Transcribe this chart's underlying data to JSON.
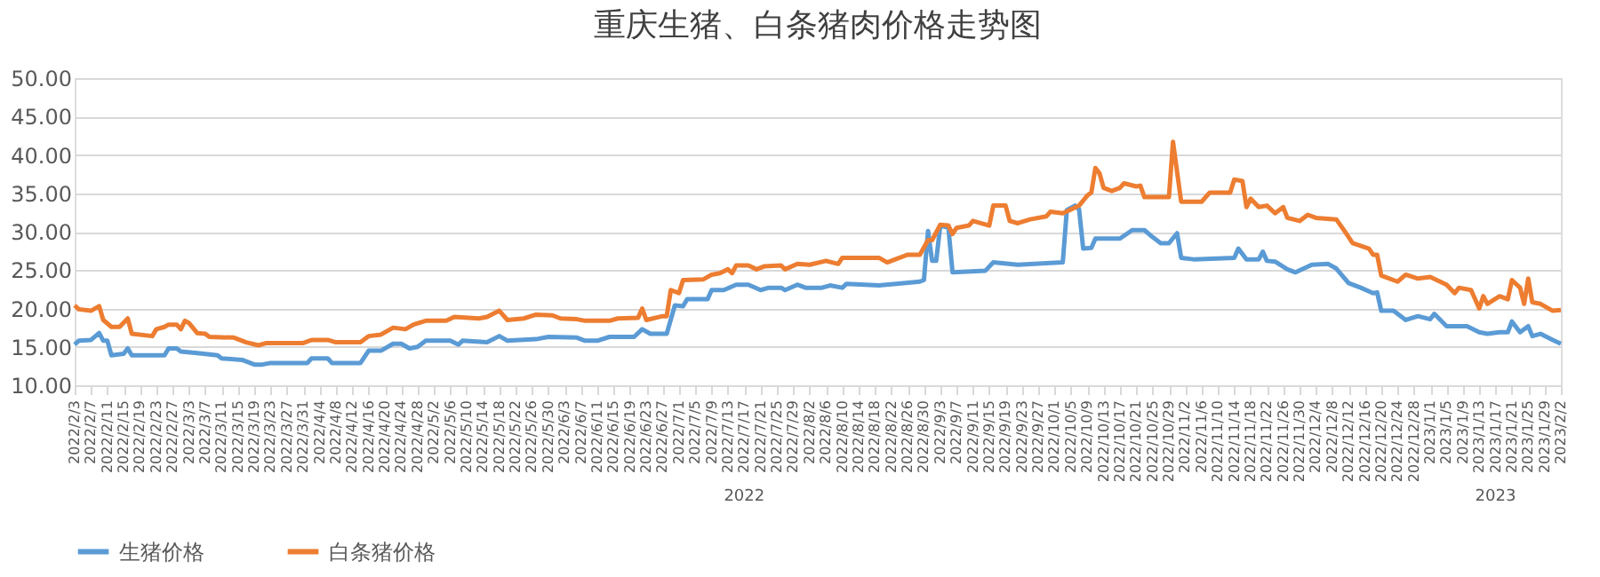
{
  "chart_data": {
    "type": "line",
    "title": "重庆生猪、白条猪肉价格走势图",
    "xlim": [
      "2022-02-03",
      "2023-02-02"
    ],
    "xticks": [
      {
        "value": "2022-02-03",
        "label": "2022/2/3"
      },
      {
        "value": "2022-02-07",
        "label": "2022/2/7"
      },
      {
        "value": "2022-02-11",
        "label": "2022/2/11"
      },
      {
        "value": "2022-02-15",
        "label": "2022/2/15"
      },
      {
        "value": "2022-02-19",
        "label": "2022/2/19"
      },
      {
        "value": "2022-02-23",
        "label": "2022/2/23"
      },
      {
        "value": "2022-02-27",
        "label": "2022/2/27"
      },
      {
        "value": "2022-03-03",
        "label": "2022/3/3"
      },
      {
        "value": "2022-03-07",
        "label": "2022/3/7"
      },
      {
        "value": "2022-03-11",
        "label": "2022/3/11"
      },
      {
        "value": "2022-03-15",
        "label": "2022/3/15"
      },
      {
        "value": "2022-03-19",
        "label": "2022/3/19"
      },
      {
        "value": "2022-03-23",
        "label": "2022/3/23"
      },
      {
        "value": "2022-03-27",
        "label": "2022/3/27"
      },
      {
        "value": "2022-03-31",
        "label": "2022/3/31"
      },
      {
        "value": "2022-04-04",
        "label": "2022/4/4"
      },
      {
        "value": "2022-04-08",
        "label": "2022/4/8"
      },
      {
        "value": "2022-04-12",
        "label": "2022/4/12"
      },
      {
        "value": "2022-04-16",
        "label": "2022/4/16"
      },
      {
        "value": "2022-04-20",
        "label": "2022/4/20"
      },
      {
        "value": "2022-04-24",
        "label": "2022/4/24"
      },
      {
        "value": "2022-04-28",
        "label": "2022/4/28"
      },
      {
        "value": "2022-05-02",
        "label": "2022/5/2"
      },
      {
        "value": "2022-05-06",
        "label": "2022/5/6"
      },
      {
        "value": "2022-05-10",
        "label": "2022/5/10"
      },
      {
        "value": "2022-05-14",
        "label": "2022/5/14"
      },
      {
        "value": "2022-05-18",
        "label": "2022/5/18"
      },
      {
        "value": "2022-05-22",
        "label": "2022/5/22"
      },
      {
        "value": "2022-05-26",
        "label": "2022/5/26"
      },
      {
        "value": "2022-05-30",
        "label": "2022/5/30"
      },
      {
        "value": "2022-06-03",
        "label": "2022/6/3"
      },
      {
        "value": "2022-06-07",
        "label": "2022/6/7"
      },
      {
        "value": "2022-06-11",
        "label": "2022/6/11"
      },
      {
        "value": "2022-06-15",
        "label": "2022/6/15"
      },
      {
        "value": "2022-06-19",
        "label": "2022/6/19"
      },
      {
        "value": "2022-06-23",
        "label": "2022/6/23"
      },
      {
        "value": "2022-06-27",
        "label": "2022/6/27"
      },
      {
        "value": "2022-07-01",
        "label": "2022/7/1"
      },
      {
        "value": "2022-07-05",
        "label": "2022/7/5"
      },
      {
        "value": "2022-07-09",
        "label": "2022/7/9"
      },
      {
        "value": "2022-07-13",
        "label": "2022/7/13"
      },
      {
        "value": "2022-07-17",
        "label": "2022/7/17"
      },
      {
        "value": "2022-07-21",
        "label": "2022/7/21"
      },
      {
        "value": "2022-07-25",
        "label": "2022/7/25"
      },
      {
        "value": "2022-07-29",
        "label": "2022/7/29"
      },
      {
        "value": "2022-08-02",
        "label": "2022/8/2"
      },
      {
        "value": "2022-08-06",
        "label": "2022/8/6"
      },
      {
        "value": "2022-08-10",
        "label": "2022/8/10"
      },
      {
        "value": "2022-08-14",
        "label": "2022/8/14"
      },
      {
        "value": "2022-08-18",
        "label": "2022/8/18"
      },
      {
        "value": "2022-08-22",
        "label": "2022/8/22"
      },
      {
        "value": "2022-08-26",
        "label": "2022/8/26"
      },
      {
        "value": "2022-08-30",
        "label": "2022/8/30"
      },
      {
        "value": "2022-09-03",
        "label": "2022/9/3"
      },
      {
        "value": "2022-09-07",
        "label": "2022/9/7"
      },
      {
        "value": "2022-09-11",
        "label": "2022/9/11"
      },
      {
        "value": "2022-09-15",
        "label": "2022/9/15"
      },
      {
        "value": "2022-09-19",
        "label": "2022/9/19"
      },
      {
        "value": "2022-09-23",
        "label": "2022/9/23"
      },
      {
        "value": "2022-09-27",
        "label": "2022/9/27"
      },
      {
        "value": "2022-10-01",
        "label": "2022/10/1"
      },
      {
        "value": "2022-10-05",
        "label": "2022/10/5"
      },
      {
        "value": "2022-10-09",
        "label": "2022/10/9"
      },
      {
        "value": "2022-10-13",
        "label": "2022/10/13"
      },
      {
        "value": "2022-10-17",
        "label": "2022/10/17"
      },
      {
        "value": "2022-10-21",
        "label": "2022/10/21"
      },
      {
        "value": "2022-10-25",
        "label": "2022/10/25"
      },
      {
        "value": "2022-10-29",
        "label": "2022/10/29"
      },
      {
        "value": "2022-11-02",
        "label": "2022/11/2"
      },
      {
        "value": "2022-11-06",
        "label": "2022/11/6"
      },
      {
        "value": "2022-11-10",
        "label": "2022/11/10"
      },
      {
        "value": "2022-11-14",
        "label": "2022/11/14"
      },
      {
        "value": "2022-11-18",
        "label": "2022/11/18"
      },
      {
        "value": "2022-11-22",
        "label": "2022/11/22"
      },
      {
        "value": "2022-11-26",
        "label": "2022/11/26"
      },
      {
        "value": "2022-11-30",
        "label": "2022/11/30"
      },
      {
        "value": "2022-12-04",
        "label": "2022/12/4"
      },
      {
        "value": "2022-12-08",
        "label": "2022/12/8"
      },
      {
        "value": "2022-12-12",
        "label": "2022/12/12"
      },
      {
        "value": "2022-12-16",
        "label": "2022/12/16"
      },
      {
        "value": "2022-12-20",
        "label": "2022/12/20"
      },
      {
        "value": "2022-12-24",
        "label": "2022/12/24"
      },
      {
        "value": "2022-12-28",
        "label": "2022/12/28"
      },
      {
        "value": "2023-01-01",
        "label": "2023/1/1"
      },
      {
        "value": "2023-01-05",
        "label": "2023/1/5"
      },
      {
        "value": "2023-01-09",
        "label": "2023/1/9"
      },
      {
        "value": "2023-01-13",
        "label": "2023/1/13"
      },
      {
        "value": "2023-01-17",
        "label": "2023/1/17"
      },
      {
        "value": "2023-01-21",
        "label": "2023/1/21"
      },
      {
        "value": "2023-01-25",
        "label": "2023/1/25"
      },
      {
        "value": "2023-01-29",
        "label": "2023/1/29"
      },
      {
        "value": "2023-02-02",
        "label": "2023/2/2"
      }
    ],
    "ylim": [
      10,
      50
    ],
    "yticks": [
      {
        "value": 10,
        "label": "10.00"
      },
      {
        "value": 15,
        "label": "15.00"
      },
      {
        "value": 20,
        "label": "20.00"
      },
      {
        "value": 25,
        "label": "25.00"
      },
      {
        "value": 30,
        "label": "30.00"
      },
      {
        "value": 35,
        "label": "35.00"
      },
      {
        "value": 40,
        "label": "40.00"
      },
      {
        "value": 45,
        "label": "45.00"
      },
      {
        "value": 50,
        "label": "50.00"
      }
    ],
    "grid": "y",
    "legend": "bottom",
    "marker": "none",
    "line_style": "solid",
    "annotations": [
      "2022",
      "2023"
    ],
    "series": [
      {
        "name": "生猪价格",
        "color": "#5b9bd5",
        "x": [
          "2022-02-03",
          "2022-02-04",
          "2022-02-07",
          "2022-02-09",
          "2022-02-10",
          "2022-02-11",
          "2022-02-12",
          "2022-02-15",
          "2022-02-16",
          "2022-02-17",
          "2022-02-25",
          "2022-02-26",
          "2022-02-28",
          "2022-03-01",
          "2022-03-05",
          "2022-03-10",
          "2022-03-11",
          "2022-03-16",
          "2022-03-19",
          "2022-03-21",
          "2022-03-23",
          "2022-04-01",
          "2022-04-02",
          "2022-04-06",
          "2022-04-07",
          "2022-04-14",
          "2022-04-16",
          "2022-04-19",
          "2022-04-22",
          "2022-04-24",
          "2022-04-26",
          "2022-04-28",
          "2022-04-30",
          "2022-05-06",
          "2022-05-08",
          "2022-05-09",
          "2022-05-15",
          "2022-05-18",
          "2022-05-20",
          "2022-05-27",
          "2022-05-30",
          "2022-06-06",
          "2022-06-08",
          "2022-06-11",
          "2022-06-14",
          "2022-06-20",
          "2022-06-22",
          "2022-06-24",
          "2022-06-28",
          "2022-06-30",
          "2022-07-02",
          "2022-07-03",
          "2022-07-08",
          "2022-07-09",
          "2022-07-12",
          "2022-07-15",
          "2022-07-18",
          "2022-07-21",
          "2022-07-23",
          "2022-07-26",
          "2022-07-27",
          "2022-07-30",
          "2022-08-01",
          "2022-08-05",
          "2022-08-07",
          "2022-08-10",
          "2022-08-11",
          "2022-08-19",
          "2022-08-25",
          "2022-08-29",
          "2022-08-30",
          "2022-08-31",
          "2022-09-01",
          "2022-09-02",
          "2022-09-03",
          "2022-09-05",
          "2022-09-06",
          "2022-09-14",
          "2022-09-16",
          "2022-09-22",
          "2022-10-03",
          "2022-10-04",
          "2022-10-06",
          "2022-10-07",
          "2022-10-08",
          "2022-10-10",
          "2022-10-11",
          "2022-10-17",
          "2022-10-20",
          "2022-10-23",
          "2022-10-25",
          "2022-10-27",
          "2022-10-29",
          "2022-10-31",
          "2022-11-01",
          "2022-11-04",
          "2022-11-14",
          "2022-11-15",
          "2022-11-17",
          "2022-11-20",
          "2022-11-21",
          "2022-11-22",
          "2022-11-24",
          "2022-11-27",
          "2022-11-29",
          "2022-12-01",
          "2022-12-03",
          "2022-12-07",
          "2022-12-09",
          "2022-12-12",
          "2022-12-15",
          "2022-12-18",
          "2022-12-19",
          "2022-12-20",
          "2022-12-23",
          "2022-12-26",
          "2022-12-29",
          "2023-01-01",
          "2023-01-02",
          "2023-01-05",
          "2023-01-10",
          "2023-01-13",
          "2023-01-15",
          "2023-01-18",
          "2023-01-20",
          "2023-01-21",
          "2023-01-22",
          "2023-01-23",
          "2023-01-25",
          "2023-01-26",
          "2023-01-28",
          "2023-01-31",
          "2023-02-02"
        ],
        "values": [
          15.3,
          15.8,
          15.9,
          16.8,
          15.8,
          15.8,
          13.9,
          14.1,
          14.8,
          13.9,
          13.9,
          14.8,
          14.8,
          14.4,
          14.2,
          13.9,
          13.5,
          13.3,
          12.7,
          12.7,
          12.9,
          12.9,
          13.5,
          13.5,
          12.9,
          12.9,
          14.5,
          14.5,
          15.4,
          15.4,
          14.8,
          15.0,
          15.8,
          15.8,
          15.3,
          15.8,
          15.6,
          16.4,
          15.8,
          16.0,
          16.3,
          16.2,
          15.8,
          15.8,
          16.3,
          16.3,
          17.3,
          16.7,
          16.7,
          20.4,
          20.3,
          21.2,
          21.2,
          22.4,
          22.4,
          23.1,
          23.1,
          22.4,
          22.7,
          22.7,
          22.4,
          23.1,
          22.7,
          22.7,
          23.0,
          22.7,
          23.2,
          23.0,
          23.3,
          23.5,
          23.7,
          30.1,
          26.2,
          26.2,
          30.8,
          30.5,
          24.7,
          24.9,
          26.0,
          25.7,
          26.0,
          32.8,
          33.4,
          32.9,
          27.8,
          27.9,
          29.1,
          29.1,
          30.2,
          30.2,
          29.3,
          28.5,
          28.5,
          29.8,
          26.6,
          26.4,
          26.6,
          27.8,
          26.4,
          26.4,
          27.4,
          26.2,
          26.1,
          25.1,
          24.7,
          25.2,
          25.7,
          25.8,
          25.2,
          23.3,
          22.7,
          22.0,
          22.1,
          19.7,
          19.7,
          18.5,
          19.0,
          18.6,
          19.3,
          17.7,
          17.7,
          16.9,
          16.7,
          16.9,
          16.9,
          18.3,
          null,
          16.9,
          17.7,
          16.4,
          16.7,
          15.9,
          15.4
        ]
      },
      {
        "name": "白条猪价格",
        "color": "#ed7d31",
        "x": [
          "2022-02-03",
          "2022-02-04",
          "2022-02-07",
          "2022-02-09",
          "2022-02-10",
          "2022-02-12",
          "2022-02-14",
          "2022-02-16",
          "2022-02-17",
          "2022-02-22",
          "2022-02-23",
          "2022-02-25",
          "2022-02-26",
          "2022-02-28",
          "2022-03-01",
          "2022-03-02",
          "2022-03-03",
          "2022-03-05",
          "2022-03-07",
          "2022-03-08",
          "2022-03-14",
          "2022-03-17",
          "2022-03-20",
          "2022-03-22",
          "2022-03-31",
          "2022-04-02",
          "2022-04-06",
          "2022-04-08",
          "2022-04-14",
          "2022-04-16",
          "2022-04-19",
          "2022-04-22",
          "2022-04-25",
          "2022-04-27",
          "2022-04-30",
          "2022-05-05",
          "2022-05-07",
          "2022-05-13",
          "2022-05-15",
          "2022-05-18",
          "2022-05-20",
          "2022-05-24",
          "2022-05-27",
          "2022-05-31",
          "2022-06-02",
          "2022-06-06",
          "2022-06-08",
          "2022-06-14",
          "2022-06-16",
          "2022-06-21",
          "2022-06-22",
          "2022-06-23",
          "2022-06-27",
          "2022-06-28",
          "2022-06-29",
          "2022-07-01",
          "2022-07-02",
          "2022-07-07",
          "2022-07-09",
          "2022-07-11",
          "2022-07-13",
          "2022-07-14",
          "2022-07-15",
          "2022-07-18",
          "2022-07-20",
          "2022-07-22",
          "2022-07-26",
          "2022-07-27",
          "2022-07-30",
          "2022-08-02",
          "2022-08-06",
          "2022-08-09",
          "2022-08-10",
          "2022-08-19",
          "2022-08-21",
          "2022-08-23",
          "2022-08-26",
          "2022-08-29",
          "2022-08-31",
          "2022-09-01",
          "2022-09-03",
          "2022-09-05",
          "2022-09-06",
          "2022-09-07",
          "2022-09-10",
          "2022-09-11",
          "2022-09-15",
          "2022-09-16",
          "2022-09-19",
          "2022-09-20",
          "2022-09-22",
          "2022-09-25",
          "2022-09-29",
          "2022-09-30",
          "2022-10-03",
          "2022-10-05",
          "2022-10-07",
          "2022-10-09",
          "2022-10-10",
          "2022-10-11",
          "2022-10-12",
          "2022-10-13",
          "2022-10-15",
          "2022-10-17",
          "2022-10-18",
          "2022-10-21",
          "2022-10-22",
          "2022-10-23",
          "2022-10-29",
          "2022-10-30",
          "2022-11-01",
          "2022-11-06",
          "2022-11-08",
          "2022-11-13",
          "2022-11-14",
          "2022-11-16",
          "2022-11-17",
          "2022-11-18",
          "2022-11-20",
          "2022-11-22",
          "2022-11-24",
          "2022-11-26",
          "2022-11-27",
          "2022-11-30",
          "2022-12-02",
          "2022-12-04",
          "2022-12-09",
          "2022-12-11",
          "2022-12-13",
          "2022-12-17",
          "2022-12-18",
          "2022-12-19",
          "2022-12-20",
          "2022-12-24",
          "2022-12-26",
          "2022-12-29",
          "2023-01-01",
          "2023-01-05",
          "2023-01-07",
          "2023-01-08",
          "2023-01-11",
          "2023-01-13",
          "2023-01-14",
          "2023-01-15",
          "2023-01-18",
          "2023-01-20",
          "2023-01-21",
          "2023-01-22",
          "2023-01-23",
          "2023-01-24",
          "2023-01-25",
          "2023-01-26",
          "2023-01-28",
          "2023-01-31",
          "2023-02-02"
        ],
        "values": [
          20.4,
          19.9,
          19.7,
          20.3,
          18.5,
          17.6,
          17.6,
          18.7,
          16.7,
          16.4,
          17.3,
          17.6,
          17.9,
          17.9,
          17.3,
          18.4,
          18.1,
          16.8,
          16.7,
          16.3,
          16.2,
          15.6,
          15.2,
          15.5,
          15.5,
          15.9,
          15.9,
          15.6,
          15.6,
          16.4,
          16.6,
          17.5,
          17.3,
          17.9,
          18.4,
          18.4,
          18.9,
          18.7,
          18.9,
          19.7,
          18.5,
          18.7,
          19.2,
          19.1,
          18.7,
          18.6,
          18.4,
          18.4,
          18.7,
          18.8,
          20.0,
          18.5,
          19.0,
          19.0,
          22.4,
          22.0,
          23.7,
          23.8,
          24.4,
          24.6,
          25.1,
          24.6,
          25.6,
          25.6,
          25.1,
          25.5,
          25.6,
          25.1,
          25.8,
          25.7,
          26.2,
          25.8,
          26.6,
          26.6,
          26.0,
          26.4,
          27.0,
          27.0,
          28.9,
          28.9,
          30.9,
          30.8,
          29.7,
          30.5,
          30.8,
          31.4,
          30.8,
          33.4,
          33.4,
          31.4,
          31.1,
          31.6,
          32.0,
          32.6,
          32.4,
          32.9,
          33.4,
          34.7,
          35.1,
          38.3,
          37.6,
          35.7,
          35.3,
          35.7,
          36.3,
          35.9,
          36.0,
          34.5,
          34.5,
          41.7,
          33.9,
          33.9,
          35.1,
          35.1,
          36.8,
          36.6,
          33.2,
          34.3,
          33.2,
          33.4,
          32.4,
          33.2,
          31.8,
          31.4,
          32.2,
          31.8,
          31.6,
          30.1,
          28.5,
          27.8,
          27.0,
          27.0,
          24.3,
          23.5,
          24.4,
          23.9,
          24.1,
          23.1,
          22.0,
          22.7,
          22.4,
          20.0,
          21.6,
          20.6,
          21.6,
          21.2,
          23.7,
          null,
          22.7,
          20.6,
          23.9,
          20.8,
          20.6,
          19.7,
          19.8
        ]
      }
    ]
  }
}
